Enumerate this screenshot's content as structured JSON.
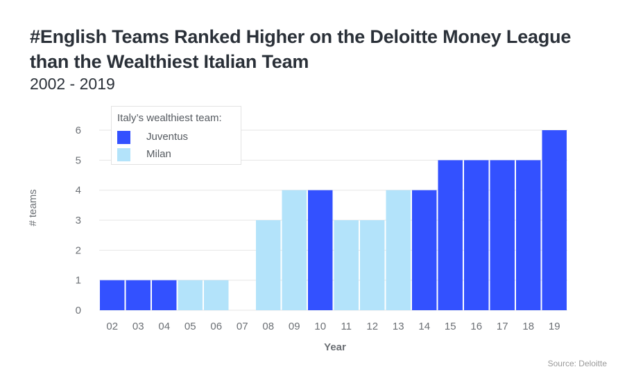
{
  "chart_data": {
    "type": "bar",
    "title": "#English Teams Ranked Higher on the Deloitte Money League than the Wealthiest Italian Team",
    "subtitle": "2002 - 2019",
    "xlabel": "Year",
    "ylabel": "# teams",
    "ylim": [
      0,
      6
    ],
    "yticks": [
      "0",
      "1",
      "2",
      "3",
      "4",
      "5",
      "6"
    ],
    "grid": true,
    "categories": [
      "02",
      "03",
      "04",
      "05",
      "06",
      "07",
      "08",
      "09",
      "10",
      "11",
      "12",
      "13",
      "14",
      "15",
      "16",
      "17",
      "18",
      "19"
    ],
    "values": [
      1,
      1,
      1,
      1,
      1,
      0,
      3,
      4,
      4,
      3,
      3,
      4,
      4,
      5,
      5,
      5,
      5,
      6
    ],
    "groups": [
      "Juventus",
      "Juventus",
      "Juventus",
      "Milan",
      "Milan",
      "Milan",
      "Milan",
      "Milan",
      "Juventus",
      "Milan",
      "Milan",
      "Milan",
      "Juventus",
      "Juventus",
      "Juventus",
      "Juventus",
      "Juventus",
      "Juventus"
    ],
    "legend": {
      "title": "Italy’s wealthiest team:",
      "placement": "top-left",
      "entries": [
        {
          "name": "Juventus",
          "color": "#3351ff"
        },
        {
          "name": "Milan",
          "color": "#b3e3fa"
        }
      ]
    },
    "source": "Source: Deloitte"
  }
}
